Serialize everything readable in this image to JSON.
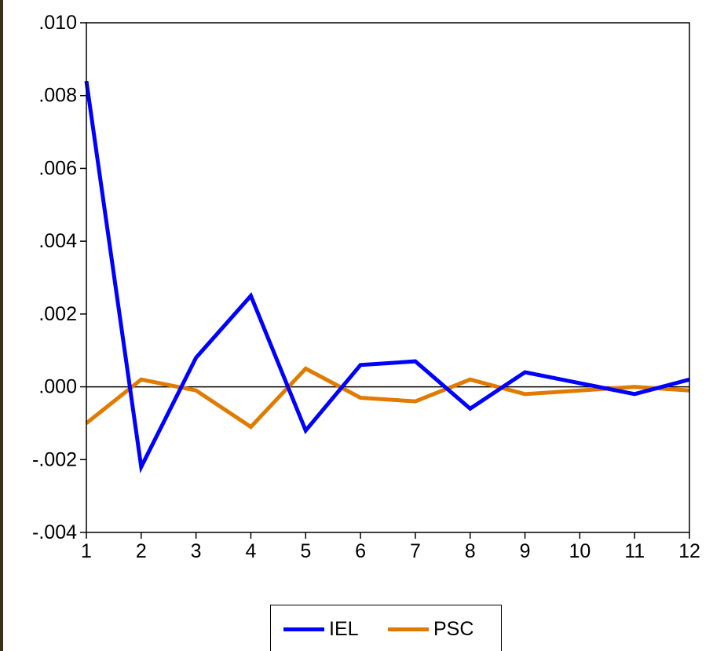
{
  "chart_data": {
    "type": "line",
    "title": "",
    "xlabel": "",
    "ylabel": "",
    "x": [
      1,
      2,
      3,
      4,
      5,
      6,
      7,
      8,
      9,
      10,
      11,
      12
    ],
    "xticks": [
      "1",
      "2",
      "3",
      "4",
      "5",
      "6",
      "7",
      "8",
      "9",
      "10",
      "11",
      "12"
    ],
    "ylim": [
      -0.004,
      0.01
    ],
    "yticks": [
      {
        "value": 0.01,
        "label": ".010"
      },
      {
        "value": 0.008,
        "label": ".008"
      },
      {
        "value": 0.006,
        "label": ".006"
      },
      {
        "value": 0.004,
        "label": ".004"
      },
      {
        "value": 0.002,
        "label": ".002"
      },
      {
        "value": 0.0,
        "label": ".000"
      },
      {
        "value": -0.002,
        "label": "-.002"
      },
      {
        "value": -0.004,
        "label": "-.004"
      }
    ],
    "zero_line": true,
    "grid": false,
    "legend_position": "bottom-center",
    "series": [
      {
        "name": "IEL",
        "color": "#0000ff",
        "values": [
          0.0084,
          -0.0022,
          0.0008,
          0.0025,
          -0.0012,
          0.0006,
          0.0007,
          -0.0006,
          0.0004,
          0.0001,
          -0.0002,
          0.0002
        ]
      },
      {
        "name": "PSC",
        "color": "#e07b00",
        "values": [
          -0.001,
          0.0002,
          -0.0001,
          -0.0011,
          0.0005,
          -0.0003,
          -0.0004,
          0.0002,
          -0.0002,
          -0.0001,
          0.0,
          -0.0001
        ]
      }
    ]
  }
}
